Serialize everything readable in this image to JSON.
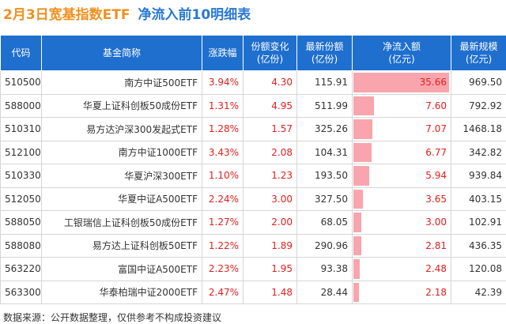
{
  "header": {
    "title_date": "2月3日宽基指数ETF",
    "title_rest": "净流入前10明细表"
  },
  "table": {
    "columns": [
      "代码",
      "基金简称",
      "涨跌幅",
      "份额变化\n(亿份)",
      "最新份额\n(亿份)",
      "净流入额\n(亿元)",
      "最新规模\n(亿元)"
    ],
    "rows": [
      [
        "510500",
        "南方中证500ETF",
        "3.94%",
        "4.30",
        "115.91",
        "35.66",
        "969.50"
      ],
      [
        "588000",
        "华夏上证科创板50成份ETF",
        "1.31%",
        "4.95",
        "511.99",
        "7.60",
        "792.92"
      ],
      [
        "510310",
        "易方达沪深300发起式ETF",
        "1.28%",
        "1.57",
        "325.26",
        "7.07",
        "1468.18"
      ],
      [
        "512100",
        "南方中证1000ETF",
        "3.43%",
        "2.08",
        "104.31",
        "6.77",
        "342.82"
      ],
      [
        "510330",
        "华夏沪深300ETF",
        "1.10%",
        "1.23",
        "193.50",
        "5.94",
        "939.84"
      ],
      [
        "512050",
        "华夏中证A500ETF",
        "2.24%",
        "3.00",
        "327.50",
        "3.65",
        "403.15"
      ],
      [
        "588050",
        "工银瑞信上证科创板50成份ETF",
        "1.27%",
        "2.00",
        "68.05",
        "3.00",
        "102.91"
      ],
      [
        "588080",
        "易方达上证科创板50ETF",
        "1.22%",
        "1.89",
        "290.96",
        "2.81",
        "436.35"
      ],
      [
        "563220",
        "富国中证A500ETF",
        "2.23%",
        "1.95",
        "93.38",
        "2.48",
        "120.08"
      ],
      [
        "563300",
        "华泰柏瑞中证2000ETF",
        "2.47%",
        "1.48",
        "28.44",
        "2.18",
        "42.39"
      ]
    ]
  },
  "footer": "数据来源：公开数据整理，仅供参考不构成投资建议"
}
